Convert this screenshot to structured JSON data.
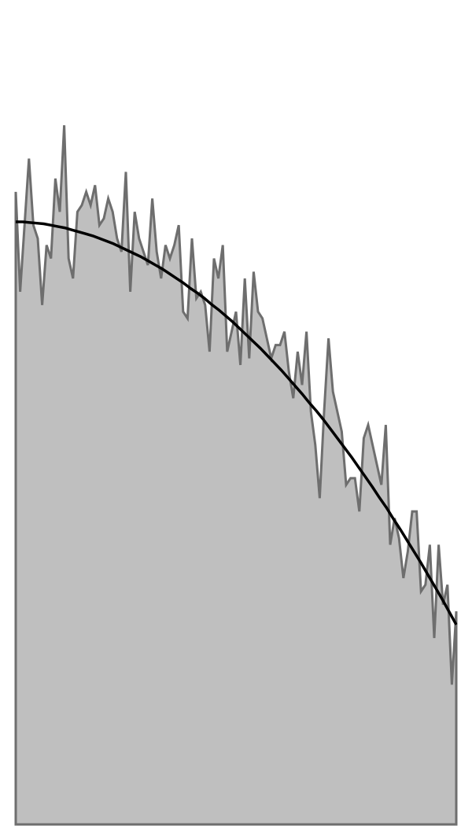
{
  "chart_data": {
    "type": "area",
    "title": "",
    "xlabel": "",
    "ylabel": "",
    "grid": false,
    "legend": "none",
    "xlim": [
      0,
      100
    ],
    "ylim": [
      0,
      1.12
    ],
    "x_count": 101,
    "series": [
      {
        "kind": "area",
        "color": "#6e6e6e",
        "fill": "#bfbfbf",
        "values": [
          0.95,
          0.8,
          0.9,
          1.0,
          0.9,
          0.88,
          0.78,
          0.87,
          0.85,
          0.97,
          0.92,
          1.05,
          0.85,
          0.82,
          0.92,
          0.93,
          0.95,
          0.93,
          0.96,
          0.9,
          0.91,
          0.94,
          0.92,
          0.88,
          0.86,
          0.98,
          0.8,
          0.92,
          0.88,
          0.86,
          0.84,
          0.94,
          0.86,
          0.82,
          0.87,
          0.85,
          0.87,
          0.9,
          0.77,
          0.76,
          0.88,
          0.79,
          0.8,
          0.78,
          0.71,
          0.85,
          0.82,
          0.87,
          0.71,
          0.74,
          0.77,
          0.69,
          0.82,
          0.7,
          0.83,
          0.77,
          0.76,
          0.73,
          0.7,
          0.72,
          0.72,
          0.74,
          0.68,
          0.64,
          0.71,
          0.66,
          0.74,
          0.62,
          0.57,
          0.49,
          0.62,
          0.73,
          0.65,
          0.62,
          0.59,
          0.51,
          0.52,
          0.52,
          0.47,
          0.58,
          0.6,
          0.57,
          0.54,
          0.51,
          0.6,
          0.42,
          0.46,
          0.43,
          0.37,
          0.41,
          0.47,
          0.47,
          0.35,
          0.36,
          0.42,
          0.28,
          0.42,
          0.33,
          0.36,
          0.21,
          0.32
        ]
      },
      {
        "kind": "line",
        "color": "#000000",
        "values": [
          0.905,
          0.905,
          0.904,
          0.903,
          0.902,
          0.9,
          0.898,
          0.896,
          0.893,
          0.89,
          0.887,
          0.884,
          0.88,
          0.876,
          0.872,
          0.867,
          0.862,
          0.857,
          0.852,
          0.846,
          0.84,
          0.834,
          0.827,
          0.82,
          0.813,
          0.805,
          0.798,
          0.79,
          0.781,
          0.773,
          0.764,
          0.755,
          0.745,
          0.735,
          0.725,
          0.715,
          0.704,
          0.693,
          0.682,
          0.67,
          0.658,
          0.646,
          0.633,
          0.621,
          0.608,
          0.594,
          0.58,
          0.566,
          0.552,
          0.537,
          0.522,
          0.507,
          0.491,
          0.476,
          0.459,
          0.443,
          0.426,
          0.409,
          0.392,
          0.374,
          0.356,
          0.338,
          0.319,
          0.3
        ]
      }
    ]
  }
}
